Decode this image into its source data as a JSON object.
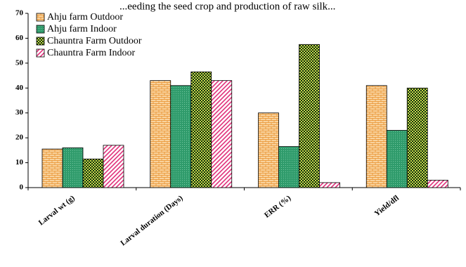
{
  "caption_fragment": "...eeding the seed crop and production of raw silk...",
  "chart_data": {
    "type": "bar",
    "categories": [
      "Larval wt (g)",
      "Larval duration (Days)",
      "ERR (%)",
      "Yield/dfl"
    ],
    "series": [
      {
        "name": "Ahju farm Outdoor",
        "values": [
          15.5,
          43,
          30,
          41
        ],
        "color": "#f7c98b",
        "pattern": "brick"
      },
      {
        "name": "Ahju farm Indoor",
        "values": [
          16,
          41,
          16.5,
          23
        ],
        "color": "#2e9e6e",
        "pattern": "dots"
      },
      {
        "name": "Chauntra Farm Outdoor",
        "values": [
          11.5,
          46.5,
          57.5,
          40
        ],
        "color": "#5a7a1e",
        "pattern": "checker"
      },
      {
        "name": "Chauntra Farm Indoor",
        "values": [
          17,
          43,
          2,
          3
        ],
        "color": "#e0307a",
        "pattern": "diagonal"
      }
    ],
    "ylim": [
      0,
      70
    ],
    "yticks": [
      0,
      10,
      20,
      30,
      40,
      50,
      60,
      70
    ],
    "legend_position": "top-left",
    "grid": false
  }
}
